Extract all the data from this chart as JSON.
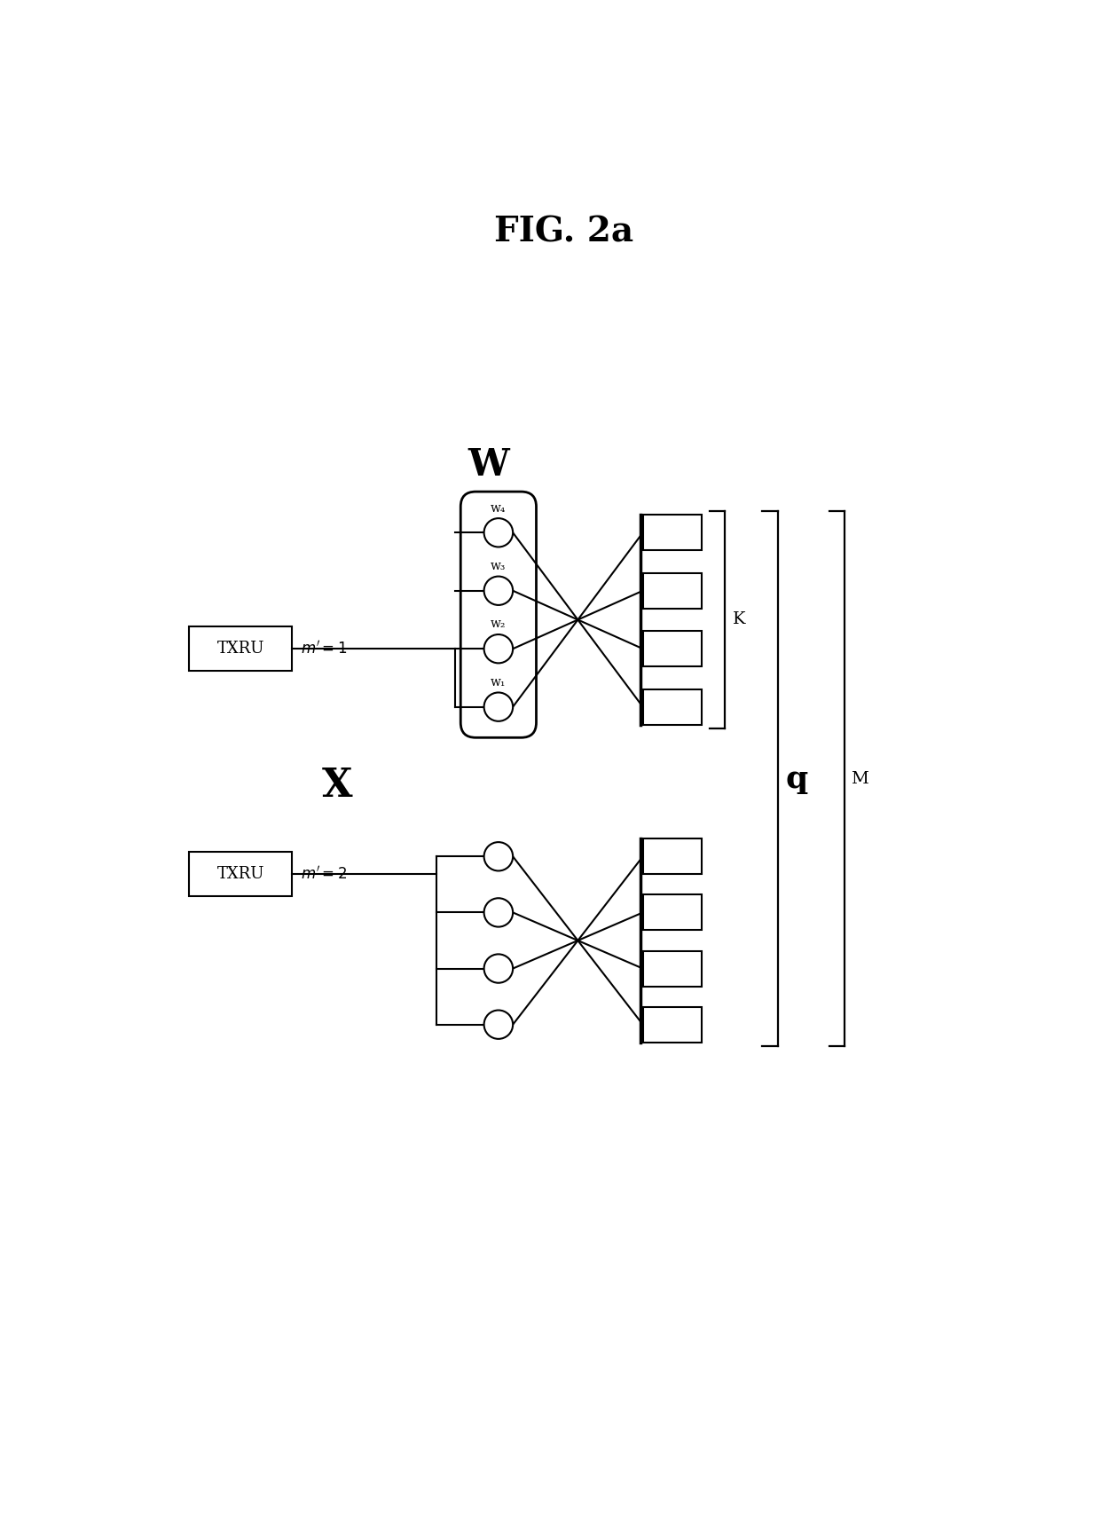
{
  "title": "FIG. 2a",
  "title_fontsize": 28,
  "title_fontweight": "bold",
  "bg_color": "#ffffff",
  "line_color": "#000000",
  "fig_width": 12.4,
  "fig_height": 17.3,
  "txru1_label": "TXRU",
  "txru2_label": "TXRU",
  "W_label": "W",
  "X_label": "X",
  "K_label": "K",
  "q_label": "q",
  "M_label": "M",
  "w_labels": [
    "w₁",
    "w₂",
    "w₃",
    "w₄"
  ]
}
